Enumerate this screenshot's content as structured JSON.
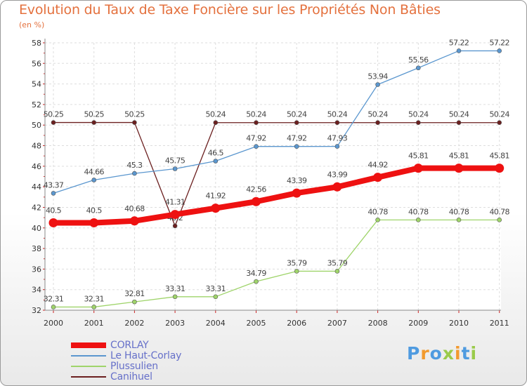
{
  "title": "Evolution du Taux de Taxe Foncière sur les Propriétés Non Bâties",
  "unit_label": "(en %)",
  "logo": {
    "text": "Proxiti",
    "letters": [
      {
        "ch": "P",
        "color": "#4f9be0"
      },
      {
        "ch": "r",
        "color": "#f29a2e"
      },
      {
        "ch": "o",
        "color": "#4f9be0"
      },
      {
        "ch": "x",
        "color": "#9acb4a"
      },
      {
        "ch": "i",
        "color": "#f29a2e"
      },
      {
        "ch": "t",
        "color": "#4f9be0"
      },
      {
        "ch": "i",
        "color": "#9acb4a"
      }
    ]
  },
  "chart_data": {
    "type": "line",
    "title": "Evolution du Taux de Taxe Foncière sur les Propriétés Non Bâties",
    "xlabel": "",
    "ylabel": "(en %)",
    "ylim": [
      32,
      58
    ],
    "yticks": [
      32,
      34,
      36,
      38,
      40,
      42,
      44,
      46,
      48,
      50,
      52,
      54,
      56,
      58
    ],
    "grid": true,
    "legend_position": "bottom-left",
    "categories": [
      "2000",
      "2001",
      "2002",
      "2003",
      "2004",
      "2005",
      "2006",
      "2007",
      "2008",
      "2009",
      "2010",
      "2011"
    ],
    "series": [
      {
        "name": "Canihuel",
        "color": "#6b1f1f",
        "emphasis": false,
        "values": [
          50.25,
          50.25,
          50.25,
          40.2,
          50.24,
          50.24,
          50.24,
          50.24,
          50.24,
          50.24,
          50.24,
          50.24
        ],
        "labels": [
          "50.25",
          "50.25",
          "50.25",
          "40.2",
          "50.24",
          "50.24",
          "50.24",
          "50.24",
          "50.24",
          "50.24",
          "50.24",
          "50.24"
        ]
      },
      {
        "name": "Le Haut-Corlay",
        "color": "#5b97cf",
        "emphasis": false,
        "values": [
          43.37,
          44.66,
          45.3,
          45.75,
          46.5,
          47.92,
          47.92,
          47.93,
          53.94,
          55.56,
          57.22,
          57.22
        ],
        "labels": [
          "43.37",
          "44.66",
          "45.3",
          "45.75",
          "46.5",
          "47.92",
          "47.92",
          "47.93",
          "53.94",
          "55.56",
          "57.22",
          "57.22"
        ]
      },
      {
        "name": "Plussulien",
        "color": "#9fd46a",
        "emphasis": false,
        "values": [
          32.31,
          32.31,
          32.81,
          33.31,
          33.31,
          34.79,
          35.79,
          35.79,
          40.78,
          40.78,
          40.78,
          40.78
        ],
        "labels": [
          "32.31",
          "32.31",
          "32.81",
          "33.31",
          "33.31",
          "34.79",
          "35.79",
          "35.79",
          "40.78",
          "40.78",
          "40.78",
          "40.78"
        ]
      },
      {
        "name": "CORLAY",
        "color": "#ee1111",
        "emphasis": true,
        "values": [
          40.5,
          40.5,
          40.68,
          41.31,
          41.92,
          42.56,
          43.39,
          43.99,
          44.92,
          45.81,
          45.81,
          45.81
        ],
        "labels": [
          "40.5",
          "40.5",
          "40.68",
          "41.31",
          "41.92",
          "42.56",
          "43.39",
          "43.99",
          "44.92",
          "45.81",
          "45.81",
          "45.81"
        ]
      }
    ],
    "legend_order": [
      "CORLAY",
      "Le Haut-Corlay",
      "Plussulien",
      "Canihuel"
    ]
  }
}
